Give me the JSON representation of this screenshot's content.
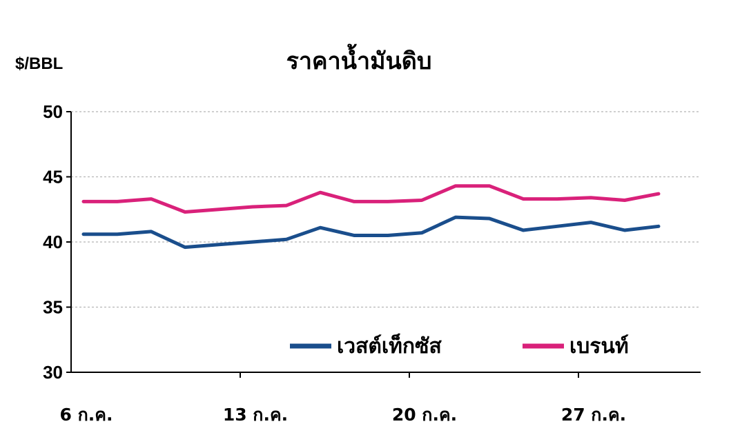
{
  "chart_data": {
    "type": "line",
    "title": "ราคาน้ำมันดิบ",
    "ylabel": "$/BBL",
    "xlabel": "",
    "ylim": [
      30,
      50
    ],
    "yticks": [
      30,
      35,
      40,
      45,
      50
    ],
    "grid": true,
    "legend_position": "bottom-right",
    "x_tick_labels": [
      {
        "label": "6 ก.ค.",
        "index": 0
      },
      {
        "label": "13 ก.ค.",
        "index": 5
      },
      {
        "label": "20 ก.ค.",
        "index": 10
      },
      {
        "label": "27 ก.ค.",
        "index": 15
      }
    ],
    "point_count": 18,
    "series": [
      {
        "name": "เวสต์เท็กซัส",
        "color": "#1a4e8c",
        "values": [
          40.6,
          40.6,
          40.8,
          39.6,
          39.8,
          40.0,
          40.2,
          41.1,
          40.5,
          40.5,
          40.7,
          41.9,
          41.8,
          40.9,
          41.2,
          41.5,
          40.9,
          41.2
        ]
      },
      {
        "name": "เบรนท์",
        "color": "#d9217a",
        "values": [
          43.1,
          43.1,
          43.3,
          42.3,
          42.5,
          42.7,
          42.8,
          43.8,
          43.1,
          43.1,
          43.2,
          44.3,
          44.3,
          43.3,
          43.3,
          43.4,
          43.2,
          43.7
        ]
      }
    ]
  }
}
